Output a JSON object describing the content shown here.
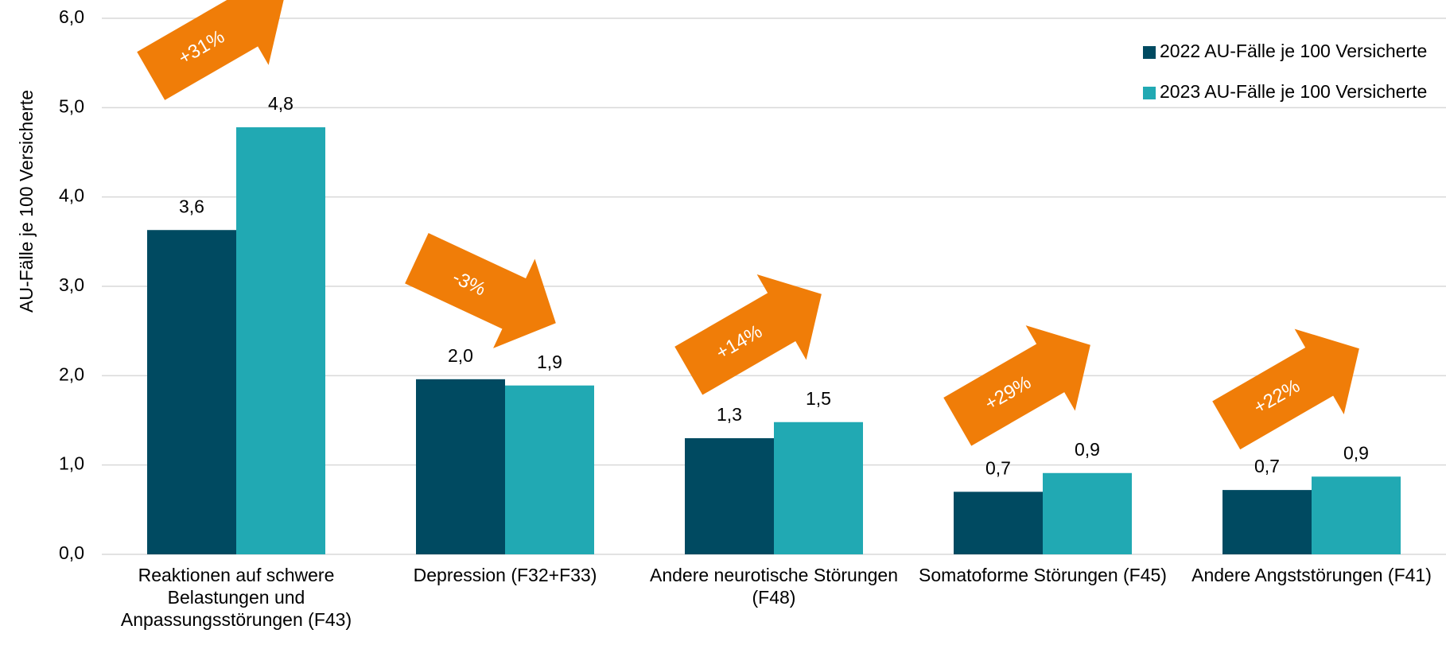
{
  "chart_data": {
    "type": "bar",
    "y_label": "AU-Fälle je 100 Versicherte",
    "categories": [
      "Reaktionen auf schwere Belastungen und Anpassungsstörungen (F43)",
      "Depression (F32+F33)",
      "Andere neurotische Störungen (F48)",
      "Somatoforme Störungen (F45)",
      "Andere Angststörungen (F41)"
    ],
    "series": [
      {
        "name": "2022 AU-Fälle je 100 Versicherte",
        "color": "#004a61",
        "values": [
          3.63,
          1.96,
          1.3,
          0.7,
          0.72
        ],
        "value_labels": [
          "3,6",
          "2,0",
          "1,3",
          "0,7",
          "0,7"
        ]
      },
      {
        "name": "2023 AU-Fälle je 100 Versicherte",
        "color": "#21a9b3",
        "values": [
          4.78,
          1.89,
          1.48,
          0.91,
          0.87
        ],
        "value_labels": [
          "4,8",
          "1,9",
          "1,5",
          "0,9",
          "0,9"
        ]
      }
    ],
    "annotations": [
      "+31%",
      "-3%",
      "+14%",
      "+29%",
      "+22%"
    ],
    "annotation_color": "#f07d08",
    "ylim": [
      0,
      6
    ],
    "yticks": [
      {
        "value": 0,
        "label": "0,0"
      },
      {
        "value": 1,
        "label": "1,0"
      },
      {
        "value": 2,
        "label": "2,0"
      },
      {
        "value": 3,
        "label": "3,0"
      },
      {
        "value": 4,
        "label": "4,0"
      },
      {
        "value": 5,
        "label": "5,0"
      },
      {
        "value": 6,
        "label": "6,0"
      }
    ],
    "grid": true,
    "legend": "top-right"
  }
}
